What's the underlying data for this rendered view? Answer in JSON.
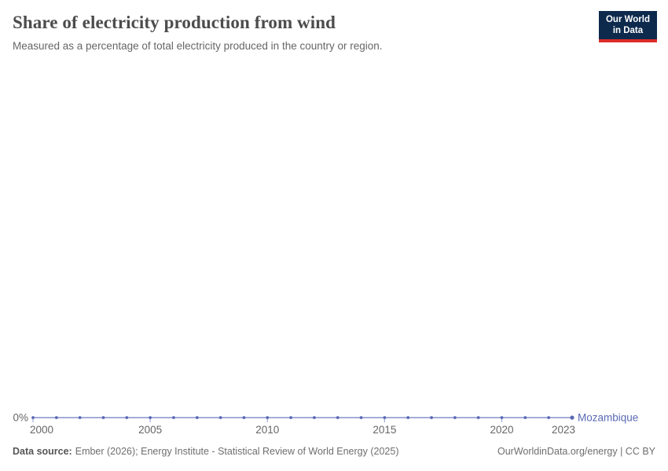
{
  "header": {
    "title": "Share of electricity production from wind",
    "subtitle": "Measured as a percentage of total electricity produced in the country or region.",
    "logo": {
      "line1": "Our World",
      "line2": "in Data"
    }
  },
  "chart_data": {
    "type": "line",
    "title": "Share of electricity production from wind",
    "xlabel": "",
    "ylabel": "",
    "unit": "%",
    "grid": false,
    "legend_position": "end-of-line",
    "xlim": [
      2000,
      2023
    ],
    "ylim": [
      0,
      1
    ],
    "x": [
      2000,
      2001,
      2002,
      2003,
      2004,
      2005,
      2006,
      2007,
      2008,
      2009,
      2010,
      2011,
      2012,
      2013,
      2014,
      2015,
      2016,
      2017,
      2018,
      2019,
      2020,
      2021,
      2022,
      2023
    ],
    "series": [
      {
        "name": "Mozambique",
        "color": "#5a69b4",
        "values": [
          0,
          0,
          0,
          0,
          0,
          0,
          0,
          0,
          0,
          0,
          0,
          0,
          0,
          0,
          0,
          0,
          0,
          0,
          0,
          0,
          0,
          0,
          0,
          0
        ]
      }
    ],
    "x_ticks": [
      2000,
      2005,
      2010,
      2015,
      2020,
      2023
    ],
    "y_tick_labels": [
      "0%"
    ]
  },
  "footer": {
    "source_label": "Data source:",
    "source_text": "Ember (2026); Energy Institute - Statistical Review of World Energy (2025)",
    "right_text": "OurWorldinData.org/energy | CC BY"
  },
  "colors": {
    "title_text": "#4c4c4c",
    "subtitle_text": "#666666",
    "axis_text": "#666666",
    "series_blue": "#5a69b4",
    "logo_navy": "#0d2a4d",
    "logo_red": "#dc2c27",
    "background": "#ffffff"
  }
}
